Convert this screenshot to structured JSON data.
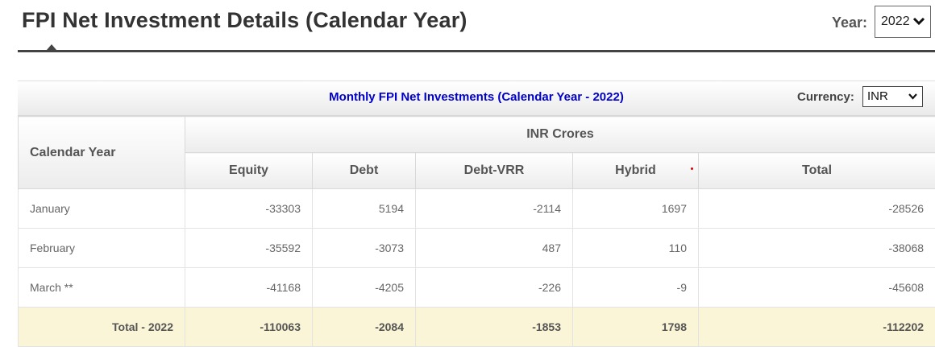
{
  "header": {
    "title": "FPI Net Investment Details (Calendar Year)",
    "year_label": "Year:",
    "year_value": "2022"
  },
  "panel": {
    "title": "Monthly FPI Net Investments (Calendar Year - 2022)",
    "currency_label": "Currency:",
    "currency_value": "INR"
  },
  "table": {
    "row_header": "Calendar Year",
    "group_header": "INR Crores",
    "columns": [
      "Equity",
      "Debt",
      "Debt-VRR",
      "Hybrid",
      "Total"
    ],
    "rows": [
      {
        "label": "January",
        "values": [
          "-33303",
          "5194",
          "-2114",
          "1697",
          "-28526"
        ]
      },
      {
        "label": "February",
        "values": [
          "-35592",
          "-3073",
          "487",
          "110",
          "-38068"
        ]
      },
      {
        "label": "March **",
        "values": [
          "-41168",
          "-4205",
          "-226",
          "-9",
          "-45608"
        ]
      }
    ],
    "total": {
      "label": "Total - 2022",
      "values": [
        "-110063",
        "-2084",
        "-1853",
        "1798",
        "-112202"
      ]
    }
  },
  "colors": {
    "panel_title": "#0000cc",
    "total_row_bg": "#fbf5d7",
    "marker_dot": "#dd0000"
  },
  "icons": {
    "year_dropdown": "chevron-down-icon",
    "currency_dropdown": "chevron-down-icon"
  }
}
